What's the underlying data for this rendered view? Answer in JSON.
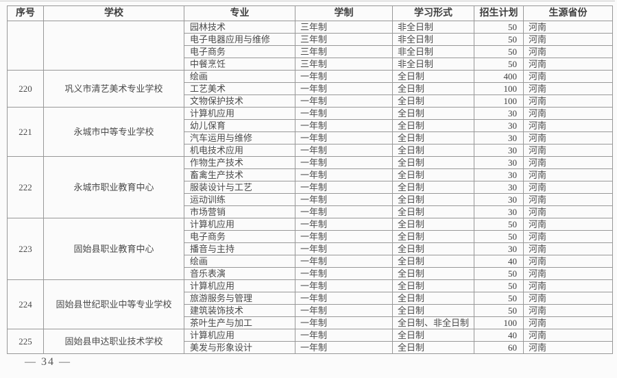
{
  "table": {
    "columns": [
      "序号",
      "学校",
      "专业",
      "学制",
      "学习形式",
      "招生计划",
      "生源省份"
    ],
    "groups": [
      {
        "no": "",
        "school": "",
        "rows": [
          {
            "major": "园林技术",
            "duration": "三年制",
            "form": "非全日制",
            "plan": "50",
            "province": "河南"
          },
          {
            "major": "电子电器应用与维修",
            "duration": "三年制",
            "form": "非全日制",
            "plan": "50",
            "province": "河南"
          },
          {
            "major": "电子商务",
            "duration": "三年制",
            "form": "非全日制",
            "plan": "50",
            "province": "河南"
          },
          {
            "major": "中餐烹饪",
            "duration": "三年制",
            "form": "非全日制",
            "plan": "50",
            "province": "河南"
          }
        ]
      },
      {
        "no": "220",
        "school": "巩义市清艺美术专业学校",
        "rows": [
          {
            "major": "绘画",
            "duration": "一年制",
            "form": "全日制",
            "plan": "400",
            "province": "河南"
          },
          {
            "major": "工艺美术",
            "duration": "一年制",
            "form": "全日制",
            "plan": "100",
            "province": "河南"
          },
          {
            "major": "文物保护技术",
            "duration": "一年制",
            "form": "全日制",
            "plan": "100",
            "province": "河南"
          }
        ]
      },
      {
        "no": "221",
        "school": "永城市中等专业学校",
        "rows": [
          {
            "major": "计算机应用",
            "duration": "一年制",
            "form": "全日制",
            "plan": "30",
            "province": "河南"
          },
          {
            "major": "幼儿保育",
            "duration": "一年制",
            "form": "全日制",
            "plan": "30",
            "province": "河南"
          },
          {
            "major": "汽车运用与维修",
            "duration": "一年制",
            "form": "全日制",
            "plan": "30",
            "province": "河南"
          },
          {
            "major": "机电技术应用",
            "duration": "一年制",
            "form": "全日制",
            "plan": "30",
            "province": "河南"
          }
        ]
      },
      {
        "no": "222",
        "school": "永城市职业教育中心",
        "rows": [
          {
            "major": "作物生产技术",
            "duration": "一年制",
            "form": "全日制",
            "plan": "30",
            "province": "河南"
          },
          {
            "major": "畜禽生产技术",
            "duration": "一年制",
            "form": "全日制",
            "plan": "30",
            "province": "河南"
          },
          {
            "major": "服装设计与工艺",
            "duration": "一年制",
            "form": "全日制",
            "plan": "30",
            "province": "河南"
          },
          {
            "major": "运动训练",
            "duration": "一年制",
            "form": "全日制",
            "plan": "30",
            "province": "河南"
          },
          {
            "major": "市场营销",
            "duration": "一年制",
            "form": "全日制",
            "plan": "30",
            "province": "河南"
          }
        ]
      },
      {
        "no": "223",
        "school": "固始县职业教育中心",
        "rows": [
          {
            "major": "计算机应用",
            "duration": "一年制",
            "form": "全日制",
            "plan": "50",
            "province": "河南"
          },
          {
            "major": "电子商务",
            "duration": "一年制",
            "form": "全日制",
            "plan": "50",
            "province": "河南"
          },
          {
            "major": "播音与主持",
            "duration": "一年制",
            "form": "全日制",
            "plan": "30",
            "province": "河南"
          },
          {
            "major": "绘画",
            "duration": "一年制",
            "form": "全日制",
            "plan": "40",
            "province": "河南"
          },
          {
            "major": "音乐表演",
            "duration": "一年制",
            "form": "全日制",
            "plan": "50",
            "province": "河南"
          }
        ]
      },
      {
        "no": "224",
        "school": "固始县世纪职业中等专业学校",
        "rows": [
          {
            "major": "计算机应用",
            "duration": "一年制",
            "form": "全日制",
            "plan": "50",
            "province": "河南"
          },
          {
            "major": "旅游服务与管理",
            "duration": "一年制",
            "form": "全日制",
            "plan": "50",
            "province": "河南"
          },
          {
            "major": "建筑装饰技术",
            "duration": "一年制",
            "form": "全日制",
            "plan": "50",
            "province": "河南"
          },
          {
            "major": "茶叶生产与加工",
            "duration": "一年制",
            "form": "全日制、非全日制",
            "plan": "100",
            "province": "河南"
          }
        ]
      },
      {
        "no": "225",
        "school": "固始县申达职业技术学校",
        "rows": [
          {
            "major": "计算机应用",
            "duration": "一年制",
            "form": "全日制",
            "plan": "40",
            "province": "河南"
          },
          {
            "major": "美发与形象设计",
            "duration": "一年制",
            "form": "全日制",
            "plan": "60",
            "province": "河南"
          }
        ]
      }
    ]
  },
  "footer": {
    "page_label": "— 34 —"
  }
}
